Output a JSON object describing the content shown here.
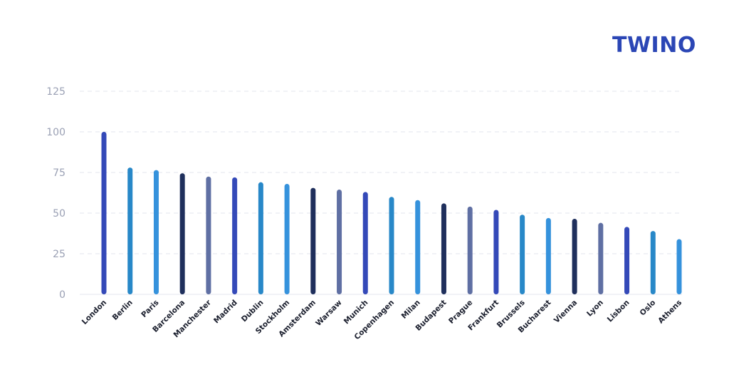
{
  "brand": {
    "logo_text": "TWINO",
    "logo_color": "#2b46b5"
  },
  "chart_data": {
    "type": "bar",
    "title": "",
    "xlabel": "",
    "ylabel": "",
    "ylim": [
      0,
      125
    ],
    "yticks": [
      0,
      25,
      50,
      75,
      100,
      125
    ],
    "grid": true,
    "categories": [
      "London",
      "Berlin",
      "Paris",
      "Barcelona",
      "Manchester",
      "Madrid",
      "Dublin",
      "Stockholm",
      "Amsterdam",
      "Warsaw",
      "Munich",
      "Copenhagen",
      "Milan",
      "Budapest",
      "Prague",
      "Frankfurt",
      "Brussels",
      "Bucharest",
      "Vienna",
      "Lyon",
      "Lisbon",
      "Oslo",
      "Athens"
    ],
    "values": [
      100,
      78,
      76.5,
      74.5,
      72.5,
      72,
      69,
      68,
      65.5,
      64.5,
      63,
      60,
      58,
      56,
      54,
      52,
      49,
      47,
      46.5,
      44,
      41.5,
      39,
      34
    ],
    "colors": [
      "#3449b8",
      "#2888c8",
      "#3592dc",
      "#1f2f5c",
      "#5f6fa3",
      "#3449b8",
      "#2888c8",
      "#3592dc",
      "#1f2f5c",
      "#5f6fa3",
      "#3449b8",
      "#2888c8",
      "#3592dc",
      "#1f2f5c",
      "#5f6fa3",
      "#3449b8",
      "#2888c8",
      "#3592dc",
      "#1f2f5c",
      "#5f6fa3",
      "#3449b8",
      "#2888c8",
      "#3592dc"
    ]
  }
}
